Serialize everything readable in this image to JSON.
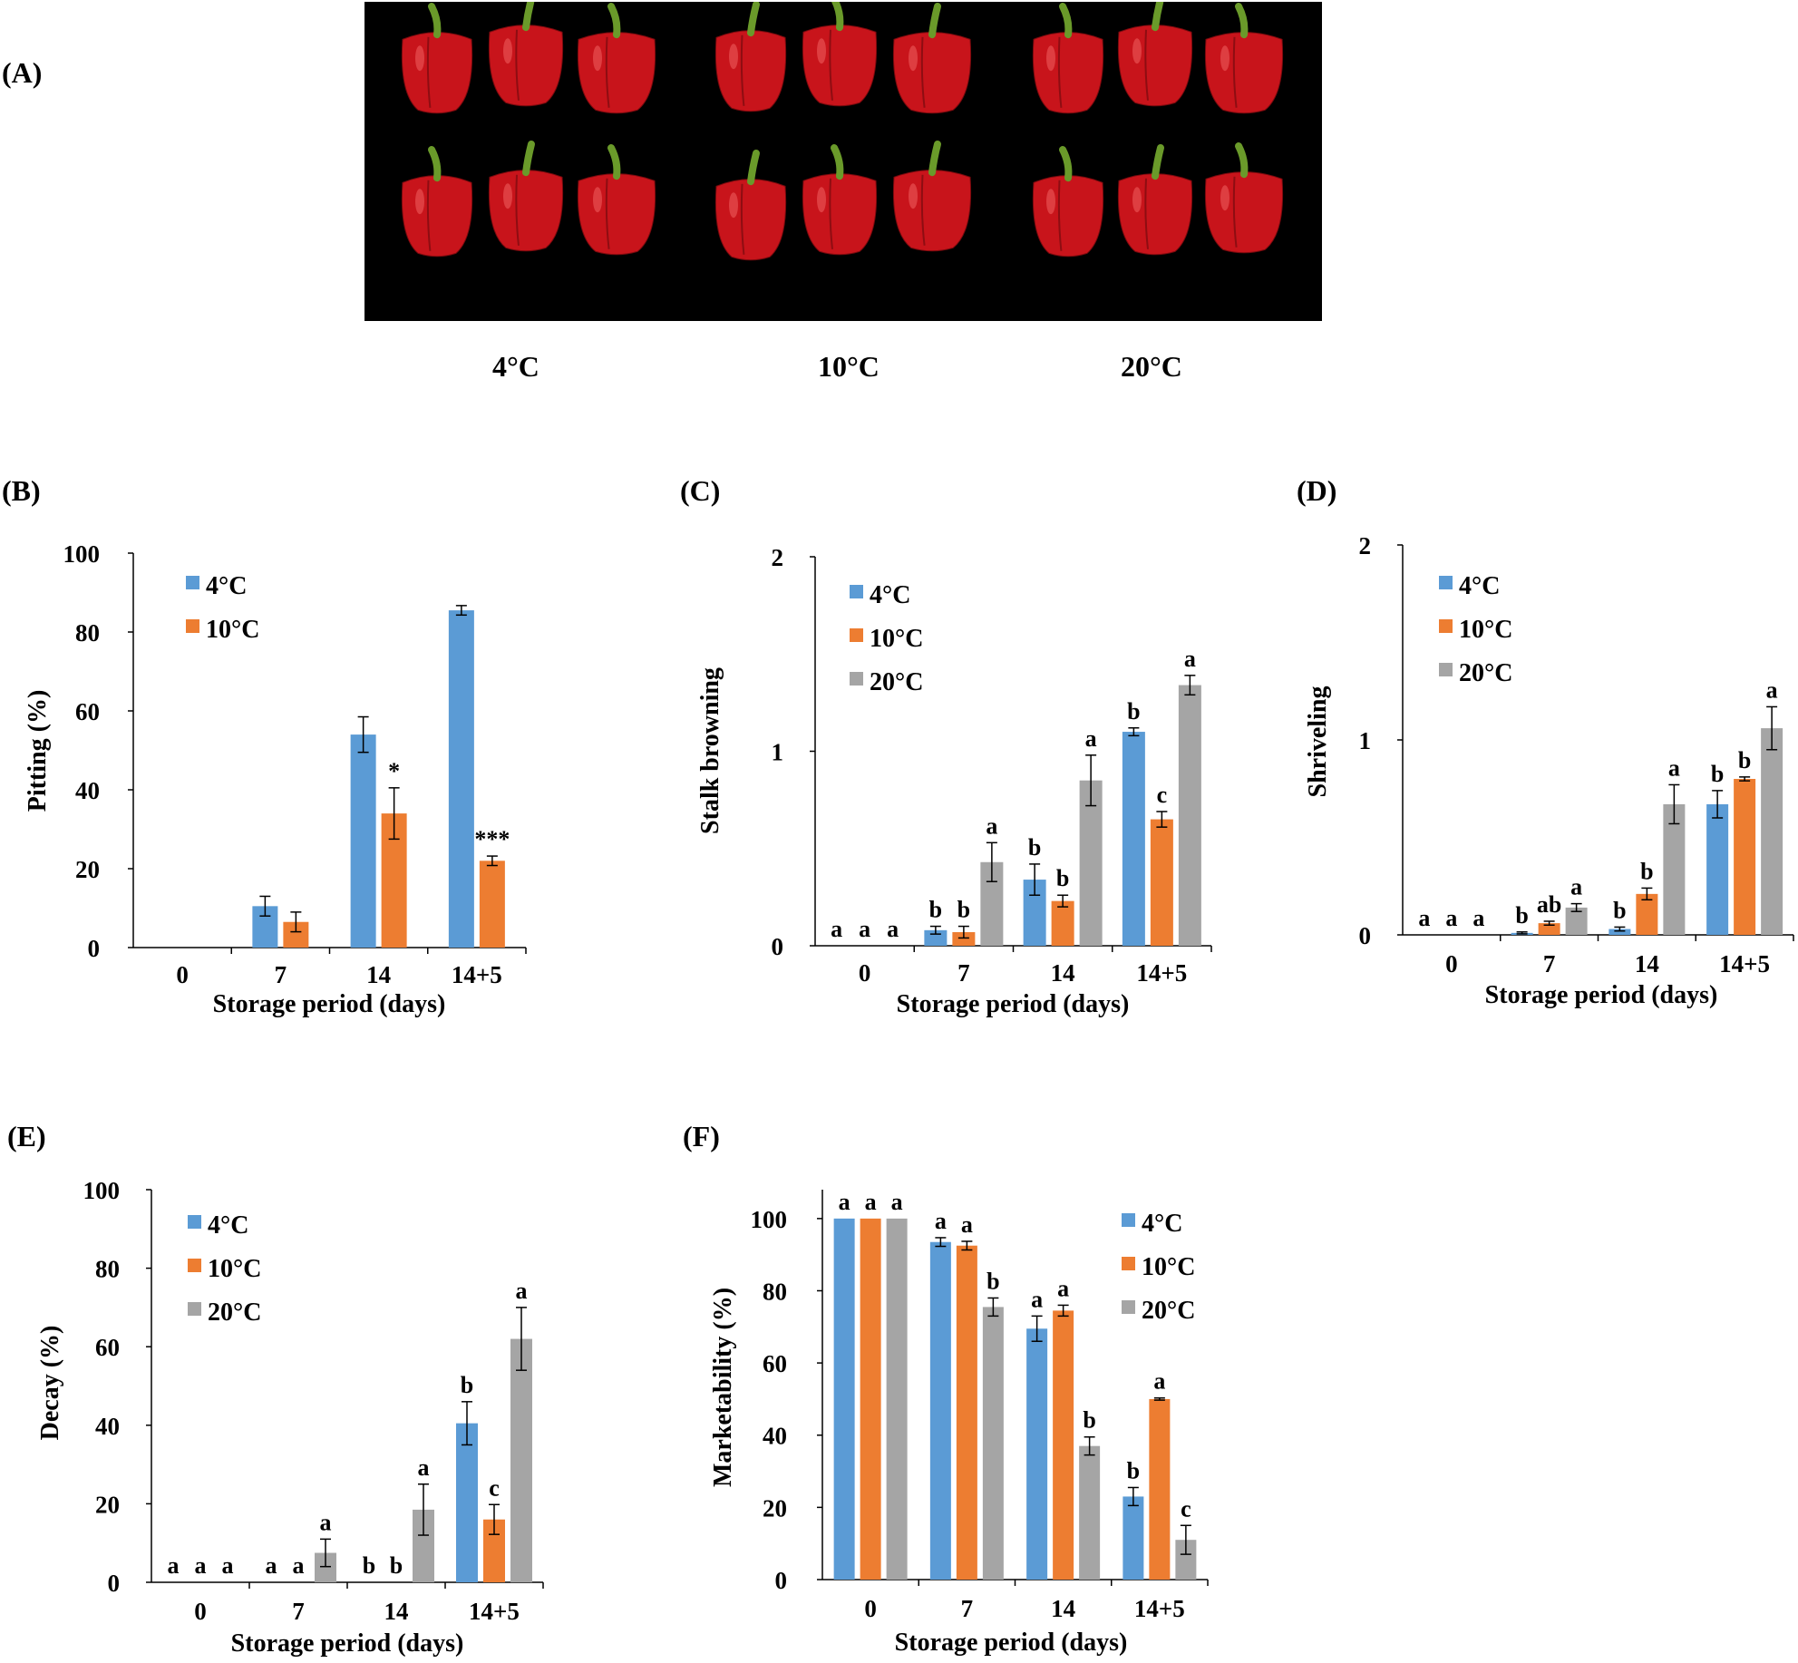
{
  "figure": {
    "photo": {
      "label": "(A)",
      "temperature_labels": [
        "4°C",
        "10°C",
        "20°C"
      ]
    }
  },
  "colors": {
    "4C": "#5b9bd5",
    "10C": "#ed7d31",
    "20C": "#a5a5a5",
    "photo_background": "#000000",
    "pepper_red": "#c8141b",
    "stem_green": "#6a9a2a"
  },
  "chart_data": [
    {
      "panel": "(B)",
      "type": "bar",
      "ylabel": "Pitting (%)",
      "xlabel": "Storage period  (days)",
      "categories": [
        "0",
        "7",
        "14",
        "14+5"
      ],
      "yticks": [
        "0",
        "20",
        "40",
        "60",
        "80",
        "100"
      ],
      "ylim": [
        0,
        100
      ],
      "legend": "top-left",
      "series": [
        {
          "name": "4°C",
          "color": "#5b9bd5",
          "values": [
            0,
            10.5,
            54,
            85.5
          ],
          "errors": [
            0,
            2.5,
            4.5,
            1.2
          ],
          "labels": [
            "",
            "",
            "",
            ""
          ]
        },
        {
          "name": "10°C",
          "color": "#ed7d31",
          "values": [
            0,
            6.5,
            34,
            22
          ],
          "errors": [
            0,
            2.5,
            6.5,
            1.2
          ],
          "labels": [
            "",
            "",
            "*",
            "***"
          ]
        }
      ]
    },
    {
      "panel": "(C)",
      "type": "bar",
      "ylabel": "Stalk browning",
      "xlabel": "Storage period  (days)",
      "categories": [
        "0",
        "7",
        "14",
        "14+5"
      ],
      "yticks": [
        "0",
        "1",
        "2"
      ],
      "ylim": [
        0,
        2
      ],
      "legend": "top-left",
      "series": [
        {
          "name": "4°C",
          "color": "#5b9bd5",
          "values": [
            0,
            0.08,
            0.34,
            1.1
          ],
          "errors": [
            0,
            0.02,
            0.08,
            0.02
          ],
          "labels": [
            "a",
            "b",
            "b",
            "b"
          ]
        },
        {
          "name": "10°C",
          "color": "#ed7d31",
          "values": [
            0,
            0.07,
            0.23,
            0.65
          ],
          "errors": [
            0,
            0.03,
            0.03,
            0.04
          ],
          "labels": [
            "a",
            "b",
            "b",
            "c"
          ]
        },
        {
          "name": "20°C",
          "color": "#a5a5a5",
          "values": [
            0,
            0.43,
            0.85,
            1.34
          ],
          "errors": [
            0,
            0.1,
            0.13,
            0.05
          ],
          "labels": [
            "a",
            "a",
            "a",
            "a"
          ]
        }
      ]
    },
    {
      "panel": "(D)",
      "type": "bar",
      "ylabel": "Shriveling",
      "xlabel": "Storage period  (days)",
      "categories": [
        "0",
        "7",
        "14",
        "14+5"
      ],
      "yticks": [
        "0",
        "1",
        "2"
      ],
      "ylim": [
        0,
        2
      ],
      "legend": "top-left",
      "series": [
        {
          "name": "4°C",
          "color": "#5b9bd5",
          "values": [
            0,
            0.01,
            0.03,
            0.67
          ],
          "errors": [
            0,
            0.005,
            0.01,
            0.07
          ],
          "labels": [
            "a",
            "b",
            "b",
            "b"
          ]
        },
        {
          "name": "10°C",
          "color": "#ed7d31",
          "values": [
            0,
            0.06,
            0.21,
            0.8
          ],
          "errors": [
            0,
            0.01,
            0.03,
            0.01
          ],
          "labels": [
            "a",
            "ab",
            "b",
            "b"
          ]
        },
        {
          "name": "20°C",
          "color": "#a5a5a5",
          "values": [
            0,
            0.14,
            0.67,
            1.06
          ],
          "errors": [
            0,
            0.02,
            0.1,
            0.11
          ],
          "labels": [
            "a",
            "a",
            "a",
            "a"
          ]
        }
      ]
    },
    {
      "panel": "(E)",
      "type": "bar",
      "ylabel": "Decay (%)",
      "xlabel": "Storage period  (days)",
      "categories": [
        "0",
        "7",
        "14",
        "14+5"
      ],
      "yticks": [
        "0",
        "20",
        "40",
        "60",
        "80",
        "100"
      ],
      "ylim": [
        0,
        100
      ],
      "legend": "top-left",
      "series": [
        {
          "name": "4°C",
          "color": "#5b9bd5",
          "values": [
            0,
            0,
            0,
            40.5
          ],
          "errors": [
            0,
            0,
            0,
            5.5
          ],
          "labels": [
            "a",
            "a",
            "b",
            "b"
          ]
        },
        {
          "name": "10°C",
          "color": "#ed7d31",
          "values": [
            0,
            0,
            0,
            16
          ],
          "errors": [
            0,
            0,
            0,
            3.8
          ],
          "labels": [
            "a",
            "a",
            "b",
            "c"
          ]
        },
        {
          "name": "20°C",
          "color": "#a5a5a5",
          "values": [
            0,
            7.5,
            18.5,
            62
          ],
          "errors": [
            0,
            3.5,
            6.5,
            8
          ],
          "labels": [
            "a",
            "a",
            "a",
            "a"
          ]
        }
      ]
    },
    {
      "panel": "(F)",
      "type": "bar",
      "ylabel": "Marketability  (%)",
      "xlabel": "Storage period  (days)",
      "categories": [
        "0",
        "7",
        "14",
        "14+5"
      ],
      "yticks": [
        "0",
        "20",
        "40",
        "60",
        "80",
        "100"
      ],
      "ylim": [
        0,
        108
      ],
      "legend": "top-right",
      "series": [
        {
          "name": "4°C",
          "color": "#5b9bd5",
          "values": [
            100,
            93.5,
            69.5,
            23
          ],
          "errors": [
            0,
            1.2,
            3.5,
            2.5
          ],
          "labels": [
            "a",
            "a",
            "a",
            "b"
          ]
        },
        {
          "name": "10°C",
          "color": "#ed7d31",
          "values": [
            100,
            92.5,
            74.5,
            50
          ],
          "errors": [
            0,
            1.2,
            1.5,
            0.3
          ],
          "labels": [
            "a",
            "a",
            "a",
            "a"
          ]
        },
        {
          "name": "20°C",
          "color": "#a5a5a5",
          "values": [
            100,
            75.5,
            37,
            11
          ],
          "errors": [
            0,
            2.5,
            2.5,
            4
          ],
          "labels": [
            "a",
            "b",
            "b",
            "c"
          ]
        }
      ]
    }
  ]
}
